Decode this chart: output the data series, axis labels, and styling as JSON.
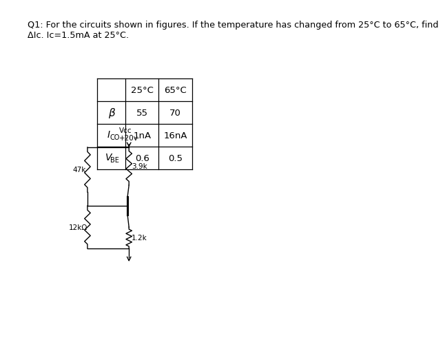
{
  "title_line1": "Q1: For the circuits shown in figures. If the temperature has changed from 25°C to 65°C, find",
  "title_line2": "ΔIc. Ic=1.5mA at 25°C.",
  "table_headers": [
    "",
    "25°C",
    "65°C"
  ],
  "table_col1": [
    "β",
    "ICO",
    "VBE"
  ],
  "table_col2": [
    "55",
    "1nA",
    "0.6"
  ],
  "table_col3": [
    "70",
    "16nA",
    "0.5"
  ],
  "vcc_label1": "Vcc",
  "vcc_label2": "+20v",
  "r1_label": "47k",
  "r2_label": "12kΩ",
  "rc_label": "3.9k",
  "re_label": "1.2k",
  "bg_color": "#ffffff",
  "fg_color": "#000000"
}
